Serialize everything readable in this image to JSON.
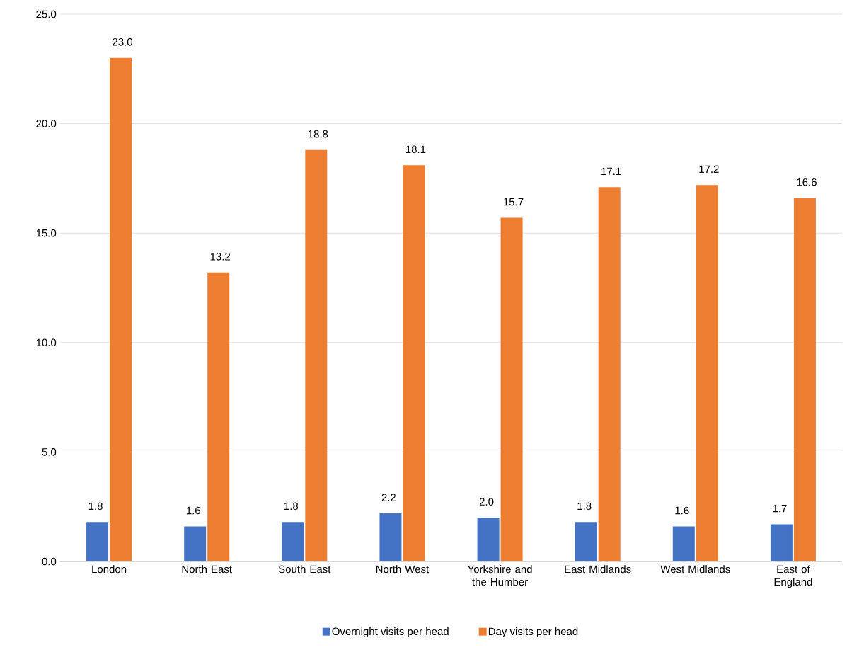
{
  "chart_data": {
    "type": "bar",
    "categories": [
      "London",
      "North East",
      "South East",
      "North West",
      "Yorkshire and the Humber",
      "East Midlands",
      "West Midlands",
      "East of England"
    ],
    "series": [
      {
        "name": "Overnight visits per head",
        "color": "#4472c4",
        "values": [
          1.8,
          1.6,
          1.8,
          2.2,
          2.0,
          1.8,
          1.6,
          1.7
        ],
        "value_labels": [
          "1.8",
          "1.6",
          "1.8",
          "2.2",
          "2.0",
          "1.8",
          "1.6",
          "1.7"
        ]
      },
      {
        "name": "Day visits per head",
        "color": "#ed7d31",
        "values": [
          23.0,
          13.2,
          18.8,
          18.1,
          15.7,
          17.1,
          17.2,
          16.6
        ],
        "value_labels": [
          "23.0",
          "13.2",
          "18.8",
          "18.1",
          "15.7",
          "17.1",
          "17.2",
          "16.6"
        ]
      }
    ],
    "ylim": [
      0,
      25
    ],
    "yticks": [
      {
        "value": 0,
        "label": "0.0"
      },
      {
        "value": 5,
        "label": "5.0"
      },
      {
        "value": 10,
        "label": "10.0"
      },
      {
        "value": 15,
        "label": "15.0"
      },
      {
        "value": 20,
        "label": "20.0"
      },
      {
        "value": 25,
        "label": "25.0"
      }
    ],
    "grid": "y",
    "legend": "bottom"
  }
}
